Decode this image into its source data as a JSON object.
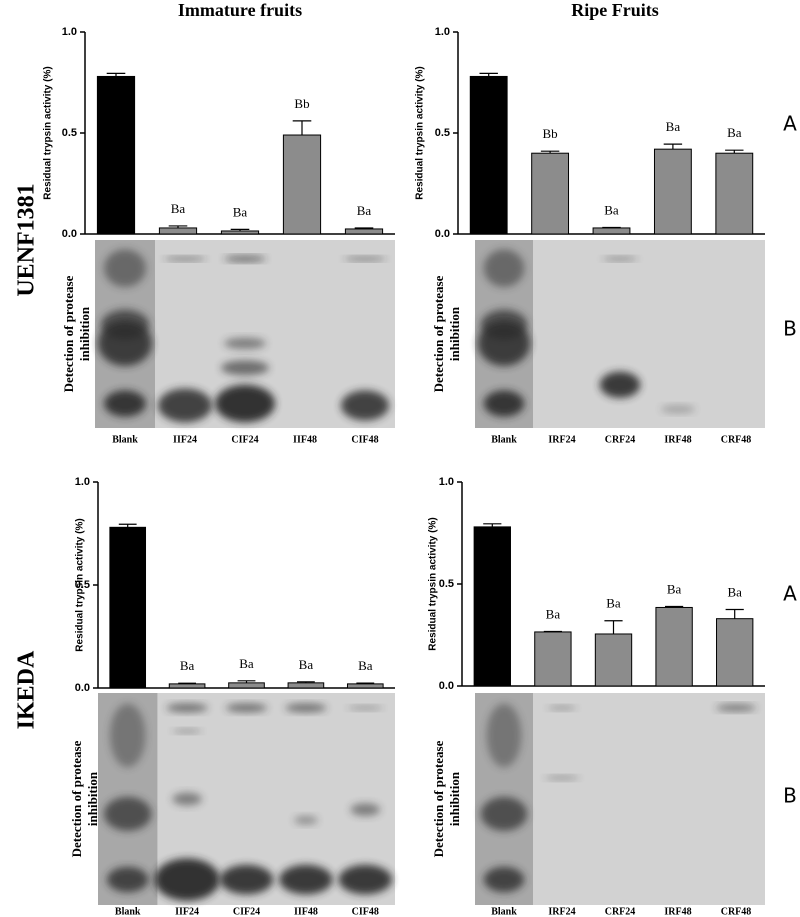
{
  "figure": {
    "columns": [
      "Immature fruits",
      "Ripe Fruits"
    ],
    "rows": [
      "UENF1381",
      "IKEDA"
    ],
    "panel_letters": [
      "A",
      "B"
    ],
    "gel_label": [
      "Detection of protease",
      "inhibition"
    ]
  },
  "chart_data": [
    {
      "type": "bar",
      "ylabel": "Residual trypsin activity (%)",
      "categories": [
        "Blank",
        "IIF24",
        "CIF24",
        "IIF48",
        "CIF48"
      ],
      "values": [
        0.78,
        0.03,
        0.015,
        0.49,
        0.025
      ],
      "errors": [
        0.015,
        0.01,
        0.008,
        0.07,
        0.005
      ],
      "annotations": [
        null,
        "Ba",
        "Ba",
        "Bb",
        "Ba"
      ],
      "colors": [
        "#000000",
        "#8c8c8c",
        "#8c8c8c",
        "#8c8c8c",
        "#8c8c8c"
      ],
      "ylim": [
        0,
        1
      ],
      "yticks": [
        {
          "value": 0,
          "label": "0.0"
        },
        0.5,
        {
          "value": 1,
          "label": "1.0"
        }
      ]
    },
    {
      "type": "bar",
      "ylabel": "Residual trypsin activity (%)",
      "categories": [
        "Blank",
        "IRF24",
        "CRF24",
        "IRF48",
        "CRF48"
      ],
      "values": [
        0.78,
        0.4,
        0.03,
        0.42,
        0.4
      ],
      "errors": [
        0.015,
        0.01,
        0.002,
        0.025,
        0.015
      ],
      "annotations": [
        null,
        "Bb",
        "Ba",
        "Ba",
        "Ba"
      ],
      "colors": [
        "#000000",
        "#8c8c8c",
        "#8c8c8c",
        "#8c8c8c",
        "#8c8c8c"
      ],
      "ylim": [
        0,
        1
      ],
      "yticks": [
        {
          "value": 0,
          "label": "0.0"
        },
        0.5,
        {
          "value": 1,
          "label": "1.0"
        }
      ]
    },
    {
      "type": "bar",
      "ylabel": "Residual trypsin activity (%)",
      "categories": [
        "Blank",
        "IIF24",
        "CIF24",
        "IIF48",
        "CIF48"
      ],
      "values": [
        0.78,
        0.02,
        0.025,
        0.025,
        0.02
      ],
      "errors": [
        0.015,
        0.003,
        0.01,
        0.005,
        0.004
      ],
      "annotations": [
        null,
        "Ba",
        "Ba",
        "Ba",
        "Ba"
      ],
      "colors": [
        "#000000",
        "#8c8c8c",
        "#8c8c8c",
        "#8c8c8c",
        "#8c8c8c"
      ],
      "ylim": [
        0,
        1
      ],
      "yticks": [
        {
          "value": 0,
          "label": "0.0"
        },
        0.5,
        {
          "value": 1,
          "label": "1.0"
        }
      ]
    },
    {
      "type": "bar",
      "ylabel": "Residual trypsin activity (%)",
      "categories": [
        "Blank",
        "IRF24",
        "CRF24",
        "IRF48",
        "CRF48"
      ],
      "values": [
        0.78,
        0.265,
        0.255,
        0.385,
        0.33
      ],
      "errors": [
        0.015,
        0.002,
        0.065,
        0.005,
        0.045
      ],
      "annotations": [
        null,
        "Ba",
        "Ba",
        "Ba",
        "Ba"
      ],
      "colors": [
        "#000000",
        "#8c8c8c",
        "#8c8c8c",
        "#8c8c8c",
        "#8c8c8c"
      ],
      "ylim": [
        0,
        1
      ],
      "yticks": [
        {
          "value": 0,
          "label": "0.0"
        },
        0.5,
        {
          "value": 1,
          "label": "1.0"
        }
      ]
    }
  ]
}
